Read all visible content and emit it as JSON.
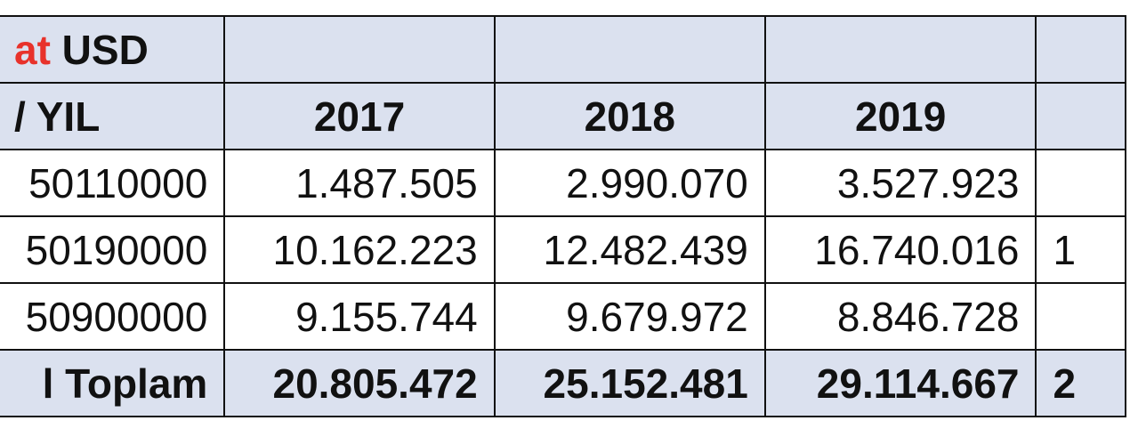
{
  "table": {
    "header_row_1": {
      "label_red": "at",
      "label_rest": " USD",
      "cells": [
        "",
        "",
        "",
        ""
      ]
    },
    "header_row_2": {
      "label": "/ YIL",
      "years": [
        "2017",
        "2018",
        "2019",
        ""
      ]
    },
    "rows": [
      {
        "code": "50110000",
        "values": [
          "1.487.505",
          "2.990.070",
          "3.527.923",
          ""
        ]
      },
      {
        "code": "50190000",
        "values": [
          "10.162.223",
          "12.482.439",
          "16.740.016",
          "1"
        ]
      },
      {
        "code": "50900000",
        "values": [
          "9.155.744",
          "9.679.972",
          "8.846.728",
          ""
        ]
      }
    ],
    "total": {
      "label": "l Toplam",
      "values": [
        "20.805.472",
        "25.152.481",
        "29.114.667",
        "2"
      ]
    }
  }
}
